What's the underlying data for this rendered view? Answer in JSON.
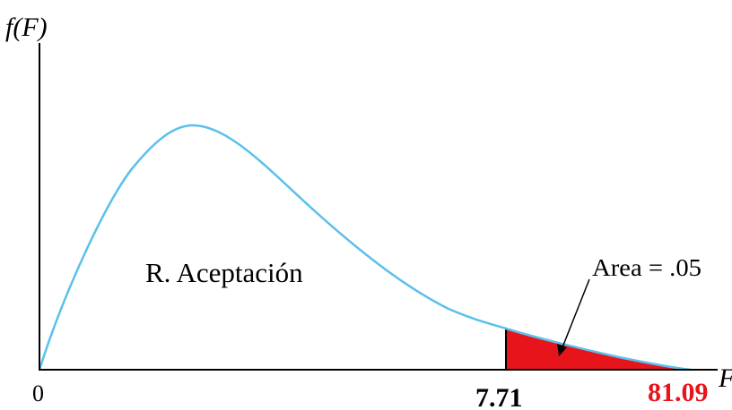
{
  "diagram": {
    "y_axis_label": "f(F)",
    "x_axis_label": "F",
    "origin_label": "0",
    "critical_value_label": "7.71",
    "statistic_value_label": "81.09",
    "acceptance_region_label": "R. Aceptación",
    "rejection_area_label": "Area = .05"
  },
  "colors": {
    "curve": "#5bc0eb",
    "rejection_fill": "#e8141c",
    "axis": "#000000",
    "statistic_text": "#e8141c"
  }
}
